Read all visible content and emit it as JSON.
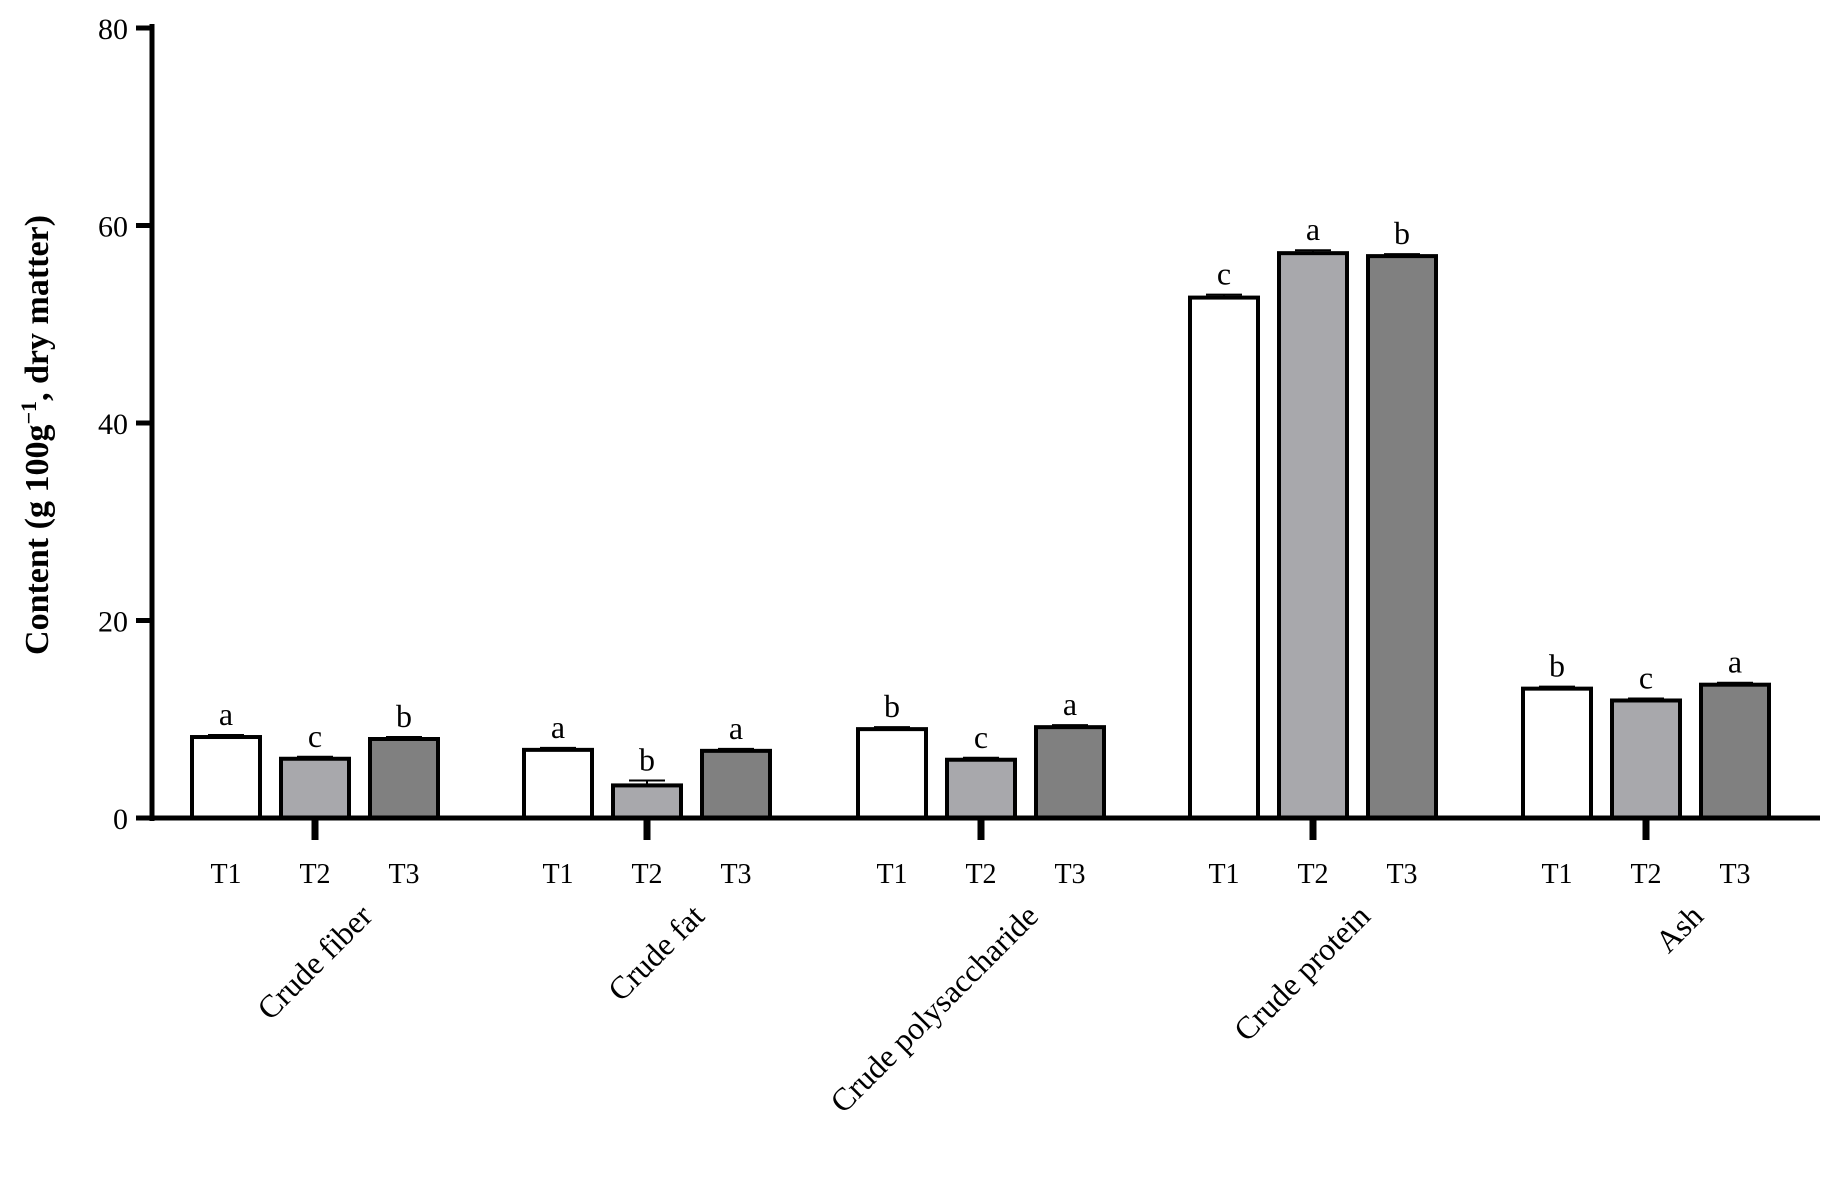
{
  "chart_data": {
    "type": "bar",
    "ylabel": {
      "prefix": "Content (g 100g",
      "superscript": "−1",
      "suffix": ",  dry matter)"
    },
    "ylim": [
      0,
      80
    ],
    "yticks": [
      0,
      20,
      40,
      60,
      80
    ],
    "grid": false,
    "legend": "none",
    "treatments": [
      "T1",
      "T2",
      "T3"
    ],
    "colors": [
      "#ffffff",
      "#a8a8ac",
      "#808080"
    ],
    "categories": [
      {
        "name": "Crude fiber",
        "values": [
          8.2,
          6.0,
          8.0
        ],
        "errors": [
          0.2,
          0.2,
          0.2
        ],
        "letters": [
          "a",
          "c",
          "b"
        ]
      },
      {
        "name": "Crude fat",
        "values": [
          6.9,
          3.3,
          6.8
        ],
        "errors": [
          0.2,
          0.5,
          0.2
        ],
        "letters": [
          "a",
          "b",
          "a"
        ]
      },
      {
        "name": "Crude polysaccharide",
        "values": [
          9.0,
          5.9,
          9.2
        ],
        "errors": [
          0.2,
          0.2,
          0.2
        ],
        "letters": [
          "b",
          "c",
          "a"
        ]
      },
      {
        "name": "Crude protein",
        "values": [
          52.7,
          57.2,
          56.9
        ],
        "errors": [
          0.3,
          0.3,
          0.2
        ],
        "letters": [
          "c",
          "a",
          "b"
        ]
      },
      {
        "name": "Ash",
        "values": [
          13.1,
          11.9,
          13.5
        ],
        "errors": [
          0.2,
          0.2,
          0.2
        ],
        "letters": [
          "b",
          "c",
          "a"
        ]
      }
    ]
  }
}
